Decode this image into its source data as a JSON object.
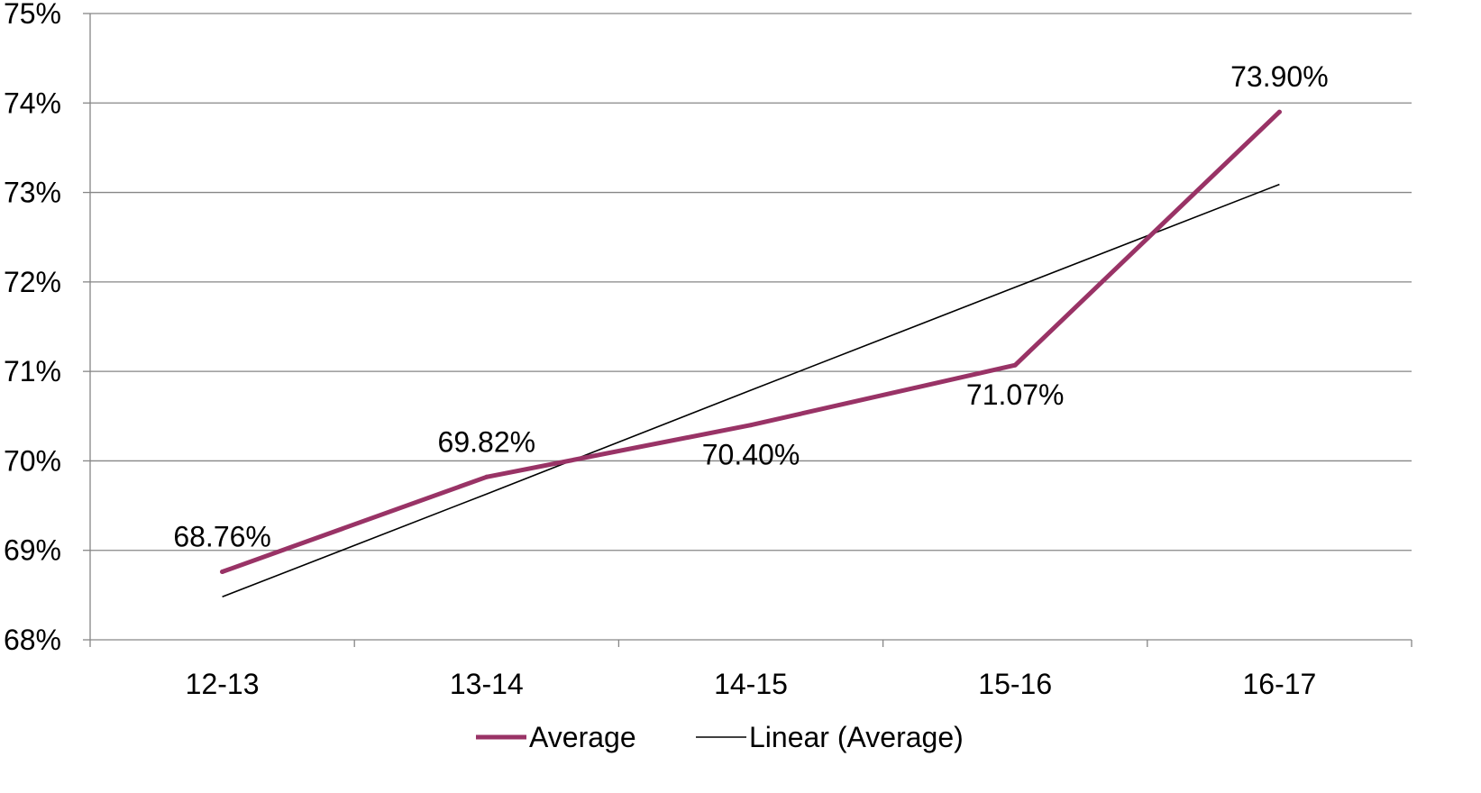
{
  "chart_data": {
    "type": "line",
    "title": "",
    "xlabel": "",
    "ylabel": "",
    "categories": [
      "12-13",
      "13-14",
      "14-15",
      "15-16",
      "16-17"
    ],
    "ylim": [
      68,
      75
    ],
    "yticks": [
      68,
      69,
      70,
      71,
      72,
      73,
      74,
      75
    ],
    "ytick_labels": [
      "68%",
      "69%",
      "70%",
      "71%",
      "72%",
      "73%",
      "74%",
      "75%"
    ],
    "grid": true,
    "series": [
      {
        "name": "Average",
        "values": [
          68.76,
          69.82,
          70.4,
          71.07,
          73.9
        ],
        "data_labels": [
          "68.76%",
          "69.82%",
          "70.40%",
          "71.07%",
          "73.90%"
        ],
        "color": "#993366"
      },
      {
        "name": "Linear (Average)",
        "type": "trendline",
        "values": [
          68.48,
          69.63,
          70.79,
          71.94,
          73.09
        ],
        "color": "#000000"
      }
    ],
    "legend": {
      "position": "bottom"
    }
  }
}
